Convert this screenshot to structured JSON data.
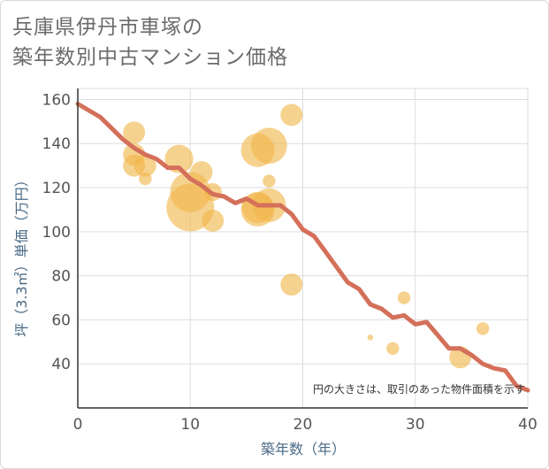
{
  "title_line1": "兵庫県伊丹市車塚の",
  "title_line2": "築年数別中古マンション価格",
  "chart_data": {
    "type": "scatter",
    "xlabel": "築年数（年）",
    "ylabel": "坪（3.3㎡）単価（万円）",
    "xlim": [
      0,
      40
    ],
    "ylim": [
      20,
      165
    ],
    "xticks": [
      0,
      10,
      20,
      30,
      40
    ],
    "yticks": [
      40,
      60,
      80,
      100,
      120,
      140,
      160
    ],
    "grid": true,
    "note": "円の大きさは、取引のあった物件面積を示す",
    "colors": {
      "bubble": "#f0b64a",
      "line": "#d4705a",
      "grid": "#dddddd",
      "axis": "#333333"
    },
    "bubbles": [
      {
        "x": 5,
        "y": 145,
        "size": 3
      },
      {
        "x": 5,
        "y": 135,
        "size": 3
      },
      {
        "x": 5,
        "y": 130,
        "size": 3
      },
      {
        "x": 6,
        "y": 130,
        "size": 3
      },
      {
        "x": 6,
        "y": 124,
        "size": 1
      },
      {
        "x": 9,
        "y": 133,
        "size": 5
      },
      {
        "x": 10,
        "y": 118,
        "size": 10
      },
      {
        "x": 10,
        "y": 111,
        "size": 14
      },
      {
        "x": 11,
        "y": 127,
        "size": 3
      },
      {
        "x": 12,
        "y": 118,
        "size": 2
      },
      {
        "x": 12,
        "y": 105,
        "size": 3
      },
      {
        "x": 16,
        "y": 137,
        "size": 7
      },
      {
        "x": 16,
        "y": 111,
        "size": 6
      },
      {
        "x": 16,
        "y": 110,
        "size": 7
      },
      {
        "x": 17,
        "y": 139,
        "size": 8
      },
      {
        "x": 17,
        "y": 123,
        "size": 1
      },
      {
        "x": 17,
        "y": 112,
        "size": 7
      },
      {
        "x": 19,
        "y": 153,
        "size": 3
      },
      {
        "x": 19,
        "y": 76,
        "size": 3
      },
      {
        "x": 26,
        "y": 52,
        "size": 0.2
      },
      {
        "x": 28,
        "y": 47,
        "size": 1
      },
      {
        "x": 29,
        "y": 70,
        "size": 1
      },
      {
        "x": 34,
        "y": 43,
        "size": 3
      },
      {
        "x": 36,
        "y": 56,
        "size": 1
      }
    ],
    "trend": {
      "x": [
        0,
        1,
        2,
        3,
        4,
        5,
        6,
        7,
        8,
        9,
        10,
        11,
        12,
        13,
        14,
        15,
        16,
        17,
        18,
        19,
        20,
        21,
        22,
        23,
        24,
        25,
        26,
        27,
        28,
        29,
        30,
        31,
        32,
        33,
        34,
        35,
        36,
        37,
        38,
        39,
        40
      ],
      "y": [
        158,
        155,
        152,
        147,
        142,
        138,
        135,
        133,
        129,
        129,
        124,
        121,
        117,
        116,
        113,
        115,
        112,
        112,
        112,
        108,
        101,
        98,
        91,
        84,
        77,
        74,
        67,
        65,
        61,
        62,
        58,
        59,
        53,
        47,
        47,
        44,
        40,
        38,
        37,
        30,
        28
      ]
    }
  }
}
